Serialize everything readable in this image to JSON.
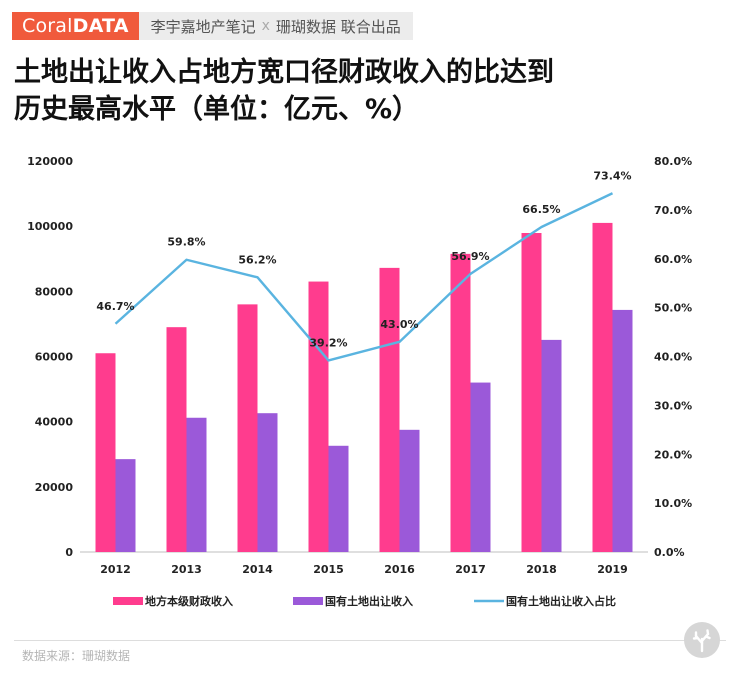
{
  "header": {
    "brand_thin": "Coral",
    "brand_bold": "DATA",
    "author": "李宇嘉地产笔记",
    "separator": "x",
    "partner": "珊瑚数据 联合出品"
  },
  "title_line1": "土地出让收入占地方宽口径财政收入的比达到",
  "title_line2": "历史最高水平（单位：亿元、%）",
  "source": "数据来源：珊瑚数据",
  "colors": {
    "fiscal_bar": "#ff3c8e",
    "land_bar": "#9b59d9",
    "ratio_line": "#5ab4e0"
  },
  "chart_data": {
    "type": "bar",
    "categories": [
      "2012",
      "2013",
      "2014",
      "2015",
      "2016",
      "2017",
      "2018",
      "2019"
    ],
    "series": [
      {
        "name": "地方本级财政收入",
        "type": "bar",
        "axis": "left",
        "values": [
          61000,
          69000,
          76000,
          83000,
          87200,
          91500,
          97900,
          101000
        ]
      },
      {
        "name": "国有土地出让收入",
        "type": "bar",
        "axis": "left",
        "values": [
          28500,
          41200,
          42600,
          32600,
          37500,
          52000,
          65100,
          74300
        ]
      },
      {
        "name": "国有土地出让收入占比",
        "type": "line",
        "axis": "right",
        "values": [
          46.7,
          59.8,
          56.2,
          39.2,
          43.0,
          56.9,
          66.5,
          73.4
        ],
        "labels": [
          "46.7%",
          "59.8%",
          "56.2%",
          "39.2%",
          "43.0%",
          "56.9%",
          "66.5%",
          "73.4%"
        ]
      }
    ],
    "y_left": {
      "min": 0,
      "max": 120000,
      "ticks": [
        "0",
        "20000",
        "40000",
        "60000",
        "80000",
        "100000",
        "120000"
      ]
    },
    "y_right": {
      "min": 0,
      "max": 80,
      "ticks": [
        "0.0%",
        "10.0%",
        "20.0%",
        "30.0%",
        "40.0%",
        "50.0%",
        "60.0%",
        "70.0%",
        "80.0%"
      ]
    },
    "grid": false,
    "legend_position": "bottom"
  }
}
